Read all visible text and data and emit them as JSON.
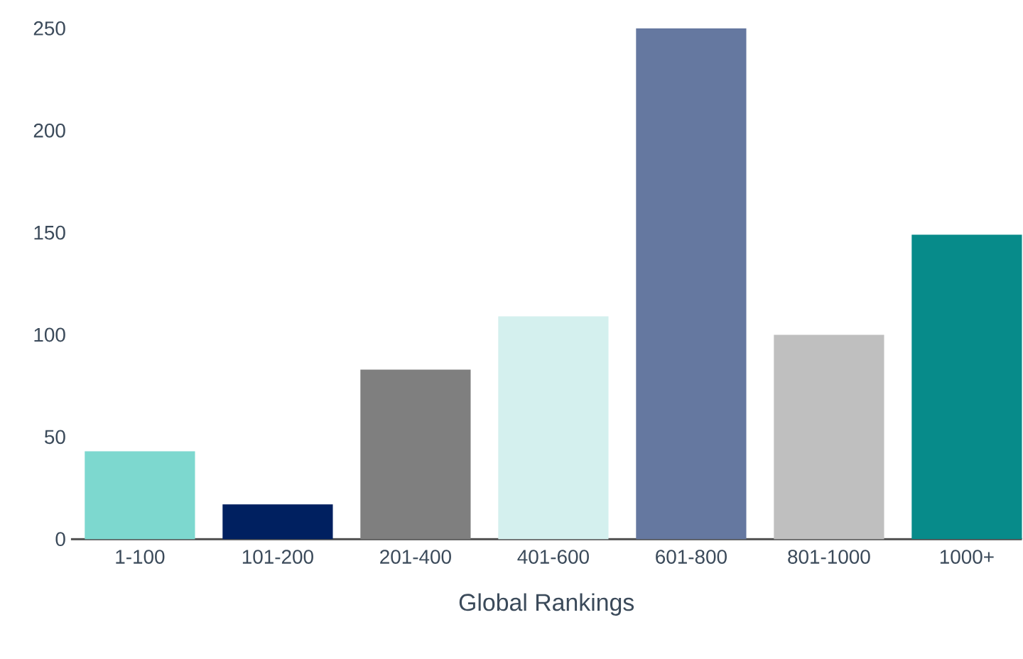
{
  "chart_data": {
    "type": "bar",
    "xlabel": "Global Rankings",
    "categories": [
      "1-100",
      "101-200",
      "201-400",
      "401-600",
      "601-800",
      "801-1000",
      "1000+"
    ],
    "values": [
      43,
      17,
      83,
      109,
      250,
      100,
      149
    ],
    "colors": [
      "#7dd8cf",
      "#002060",
      "#7f7f7f",
      "#d4f0ee",
      "#6578a0",
      "#bfbfbf",
      "#078b8a"
    ],
    "ylim": [
      0,
      250
    ],
    "yticks": [
      0,
      50,
      100,
      150,
      200,
      250
    ]
  }
}
